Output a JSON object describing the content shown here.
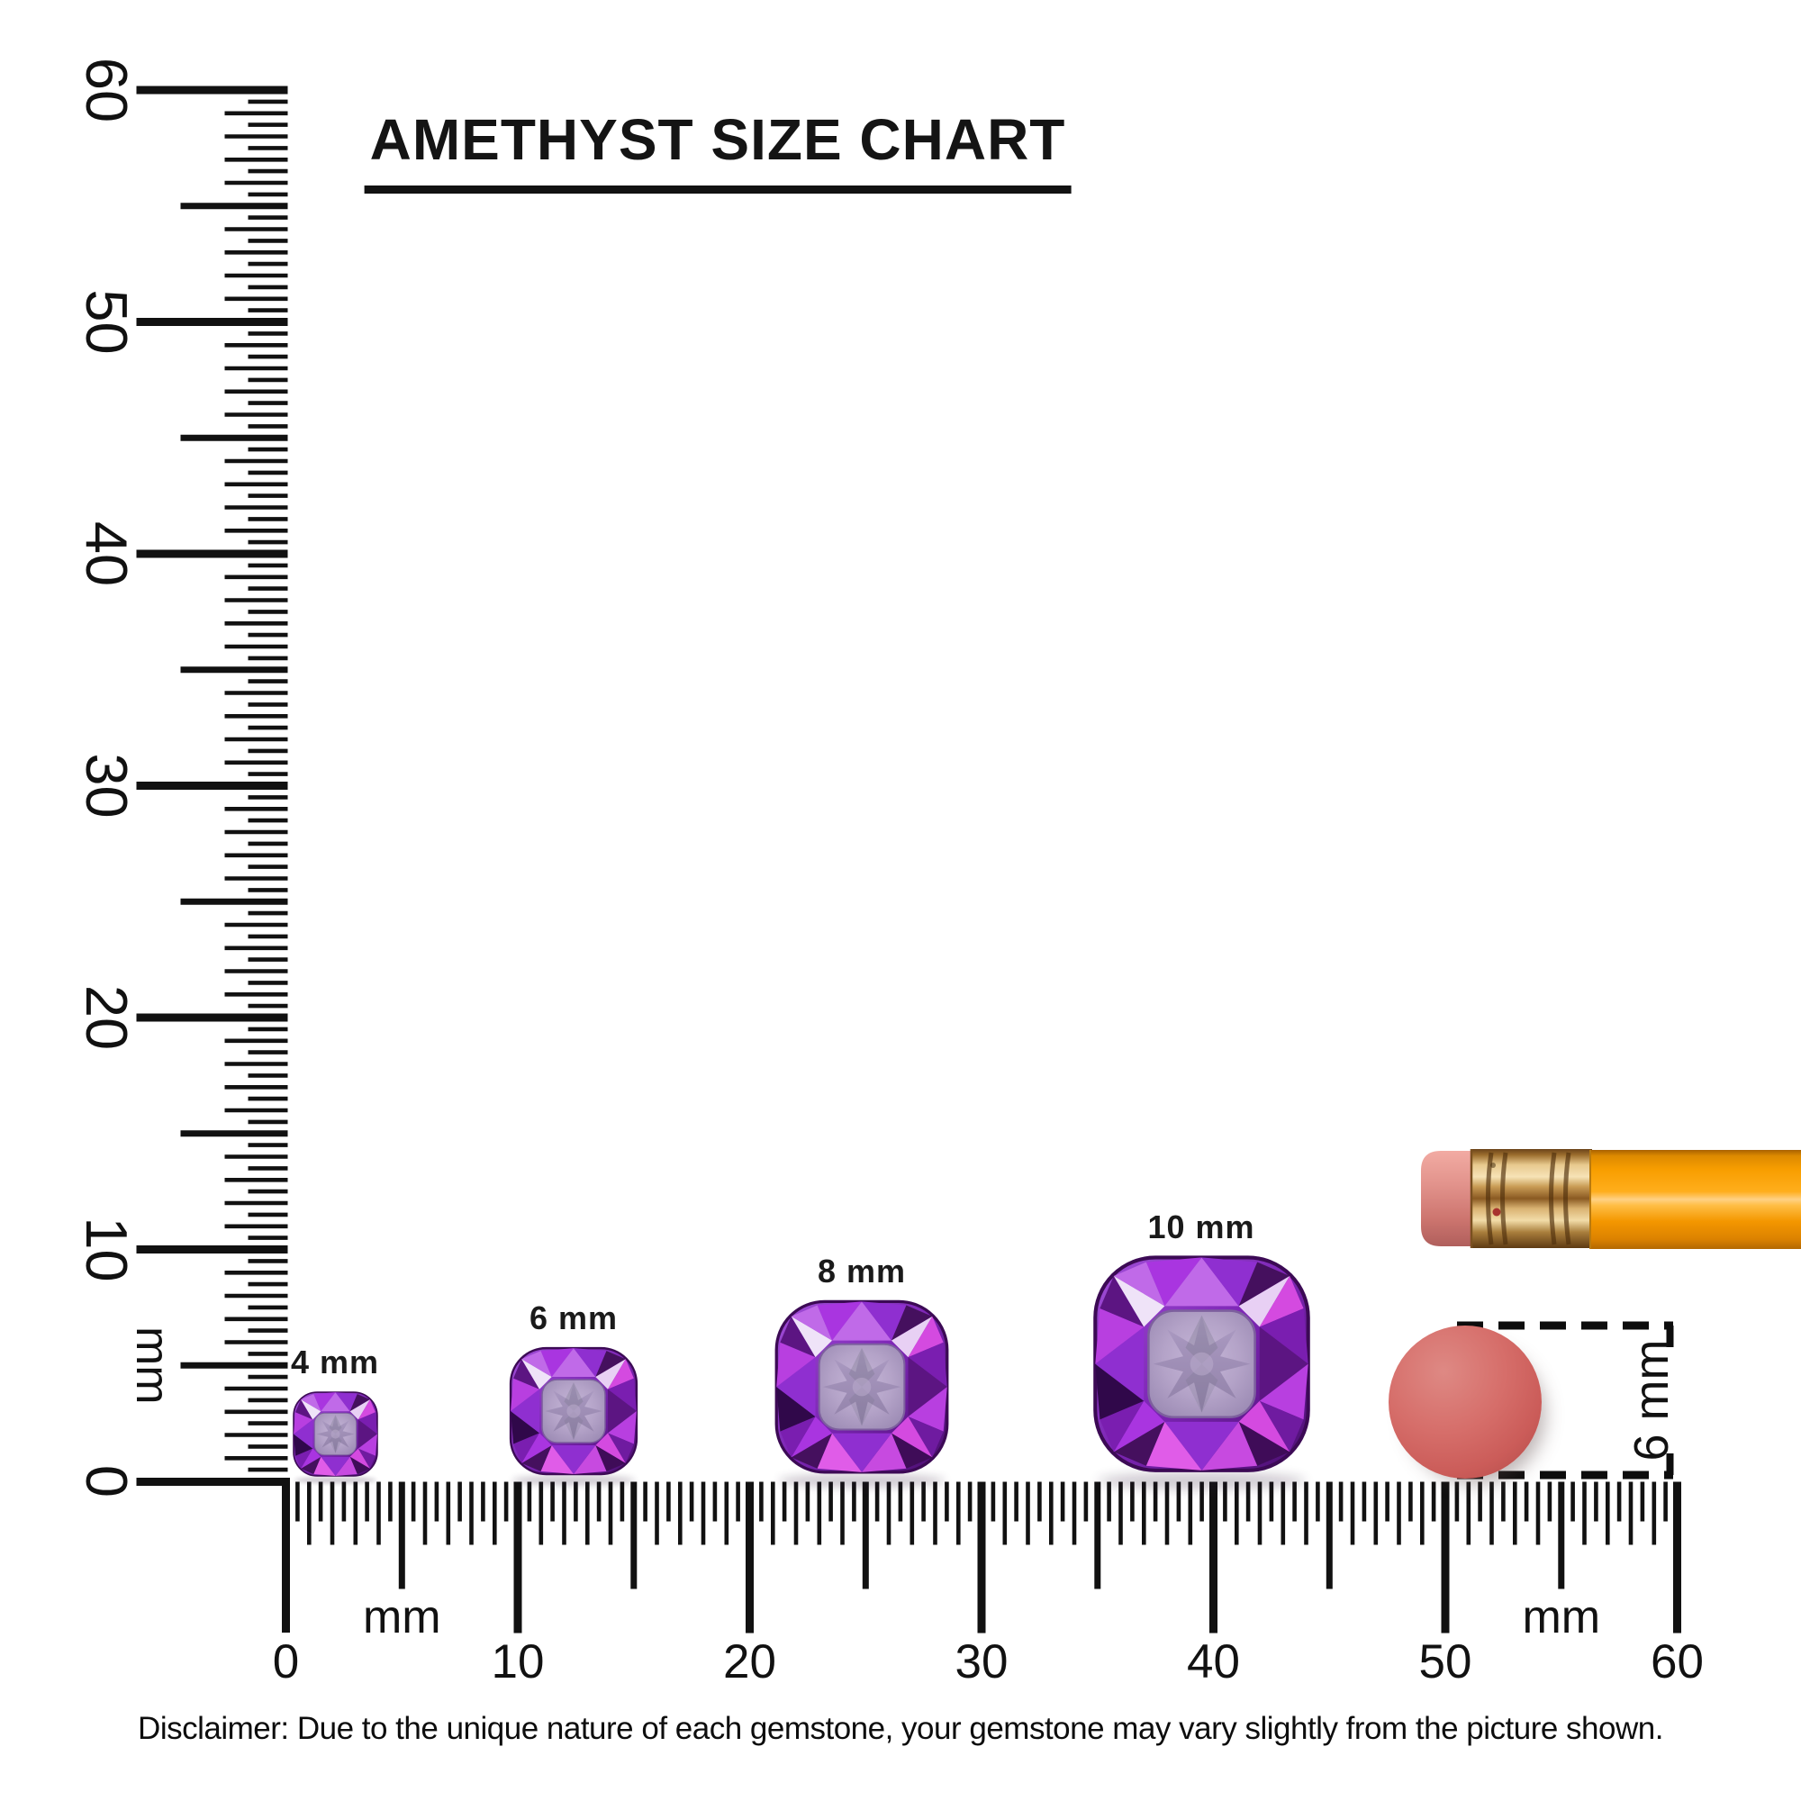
{
  "title": "AMETHYST SIZE CHART",
  "disclaimer": "Disclaimer: Due to the unique nature of each gemstone, your gemstone may vary slightly from the picture shown.",
  "rulers": {
    "vertical": {
      "unit": "mm",
      "min_mm": 0,
      "max_mm": 60,
      "major_step_mm": 10,
      "labels": [
        "0",
        "10",
        "20",
        "30",
        "40",
        "50",
        "60"
      ]
    },
    "horizontal": {
      "unit": "mm",
      "min_mm": 0,
      "max_mm": 60,
      "major_step_mm": 10,
      "labels": [
        "0",
        "10",
        "20",
        "30",
        "40",
        "50",
        "60"
      ],
      "unit_labels": [
        "mm",
        "mm"
      ]
    }
  },
  "gems": [
    {
      "label": "4 mm",
      "size_mm": 4
    },
    {
      "label": "6 mm",
      "size_mm": 6
    },
    {
      "label": "8 mm",
      "size_mm": 8
    },
    {
      "label": "10 mm",
      "size_mm": 10
    }
  ],
  "reference_objects": {
    "pencil": {
      "description": "pencil with pink eraser and gold ferrule",
      "body_color": "#F59B0A",
      "ferrule_color": "#D9A85C",
      "eraser_color": "#DE8B84"
    },
    "round_eraser": {
      "color": "#D26462",
      "diameter_mm": 6,
      "measure_label": "6 mm"
    }
  },
  "colors": {
    "ink": "#111111",
    "amethyst_primary": "#8F2FD0",
    "amethyst_magenta": "#D44AE0",
    "amethyst_dark": "#45105E",
    "amethyst_table": "#B4A3C8"
  }
}
